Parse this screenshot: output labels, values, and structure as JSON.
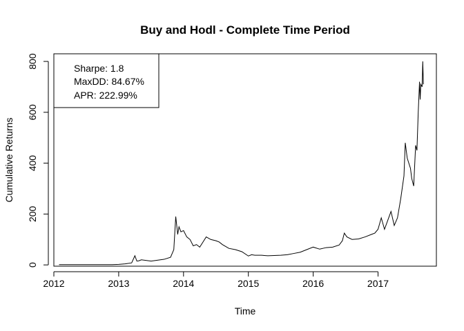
{
  "chart_data": {
    "type": "line",
    "title": "Buy and Hodl - Complete Time Period",
    "xlabel": "Time",
    "ylabel": "Cumulative Returns",
    "xlim": [
      2012.0,
      2017.9
    ],
    "ylim": [
      -5,
      830
    ],
    "xticks": [
      2012,
      2013,
      2014,
      2015,
      2016,
      2017
    ],
    "xtick_labels": [
      "2012",
      "2013",
      "2014",
      "2015",
      "2016",
      "2017"
    ],
    "yticks": [
      0,
      200,
      400,
      600,
      800
    ],
    "ytick_labels": [
      "0",
      "200",
      "400",
      "600",
      "800"
    ],
    "legend": {
      "position": "top-left",
      "lines": [
        "Sharpe: 1.8",
        "MaxDD: 84.67%",
        "APR: 222.99%"
      ]
    },
    "series": [
      {
        "x": [
          2012.08,
          2012.5,
          2012.9,
          2013.0,
          2013.1,
          2013.2,
          2013.25,
          2013.28,
          2013.31,
          2013.35,
          2013.5,
          2013.7,
          2013.8,
          2013.85,
          2013.88,
          2013.91,
          2013.93,
          2013.96,
          2014.0,
          2014.05,
          2014.1,
          2014.15,
          2014.2,
          2014.25,
          2014.3,
          2014.35,
          2014.42,
          2014.5,
          2014.55,
          2014.6,
          2014.7,
          2014.8,
          2014.9,
          2015.0,
          2015.05,
          2015.1,
          2015.2,
          2015.3,
          2015.5,
          2015.6,
          2015.7,
          2015.8,
          2015.9,
          2016.0,
          2016.1,
          2016.2,
          2016.3,
          2016.4,
          2016.45,
          2016.48,
          2016.52,
          2016.6,
          2016.7,
          2016.8,
          2016.9,
          2016.95,
          2017.0,
          2017.05,
          2017.1,
          2017.15,
          2017.2,
          2017.25,
          2017.3,
          2017.35,
          2017.4,
          2017.42,
          2017.45,
          2017.5,
          2017.52,
          2017.55,
          2017.58,
          2017.6,
          2017.62,
          2017.64,
          2017.65,
          2017.66,
          2017.68,
          2017.69,
          2017.7
        ],
        "y": [
          1,
          1,
          1,
          2,
          4,
          8,
          36,
          15,
          16,
          20,
          15,
          22,
          30,
          60,
          190,
          120,
          150,
          130,
          135,
          110,
          100,
          75,
          80,
          70,
          90,
          110,
          100,
          95,
          90,
          80,
          65,
          60,
          52,
          35,
          40,
          38,
          38,
          36,
          38,
          40,
          45,
          50,
          60,
          70,
          62,
          68,
          70,
          78,
          95,
          125,
          110,
          100,
          102,
          110,
          120,
          125,
          140,
          185,
          140,
          175,
          210,
          155,
          185,
          260,
          350,
          480,
          420,
          380,
          340,
          310,
          470,
          450,
          600,
          720,
          650,
          710,
          700,
          800,
          710
        ]
      }
    ]
  }
}
